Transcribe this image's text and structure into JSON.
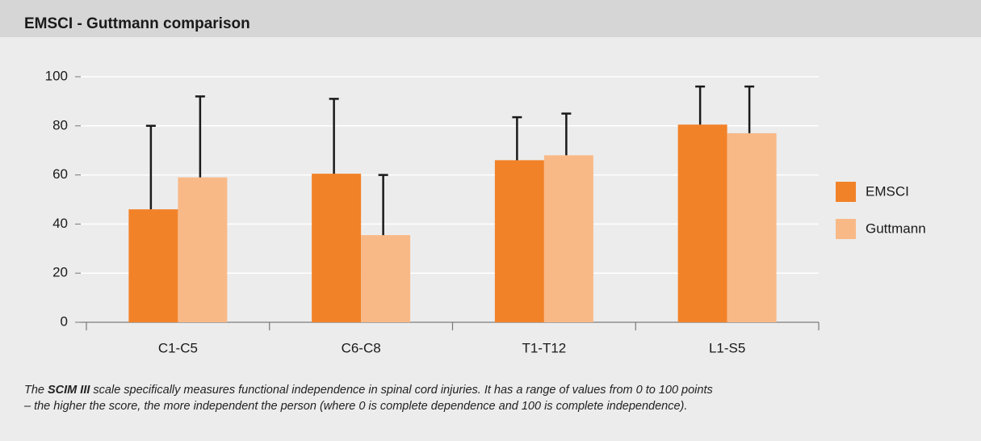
{
  "chart_data": {
    "type": "bar",
    "title": "EMSCI - Guttmann comparison",
    "categories": [
      "C1-C5",
      "C6-C8",
      "T1-T12",
      "L1-S5"
    ],
    "series": [
      {
        "name": "EMSCI",
        "color": "#f28228",
        "values": [
          46,
          60.5,
          66,
          80.5
        ],
        "errors": [
          34,
          30.5,
          17.5,
          15.5
        ]
      },
      {
        "name": "Guttmann",
        "color": "#f9b987",
        "values": [
          59,
          35.5,
          68,
          77
        ],
        "errors": [
          33,
          24.5,
          17,
          19
        ]
      }
    ],
    "ylim": [
      0,
      100
    ],
    "yticks": [
      0,
      20,
      40,
      60,
      80,
      100
    ],
    "grid": true,
    "legend": "right",
    "caption": [
      "The ",
      "SCIM III",
      " scale specifically measures functional independence in spinal cord injuries. It has a range of values from 0 to 100 points",
      "– the higher the score, the more independent the person (where 0 is complete dependence and 100 is complete independence)."
    ]
  }
}
